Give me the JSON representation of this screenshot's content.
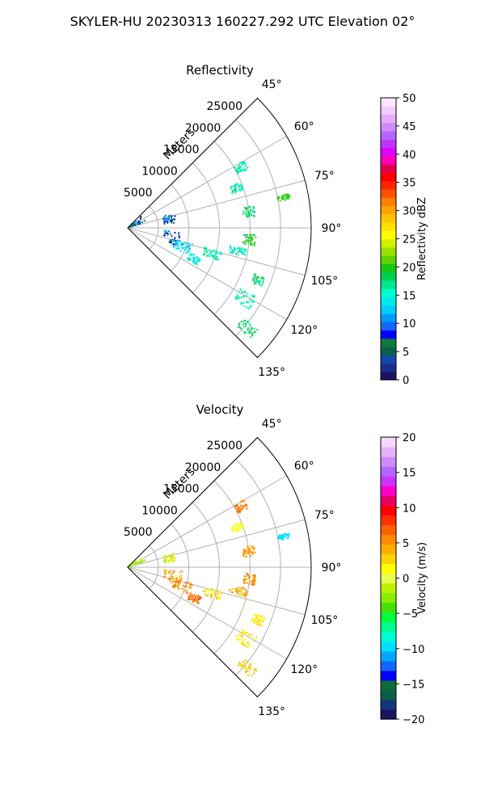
{
  "figure": {
    "suptitle": "SKYLER-HU  20230313  160227.292 UTC Elevation 02°"
  },
  "chart_data": [
    {
      "type": "scatter",
      "projection": "polar-sector",
      "title": "Reflectivity",
      "radial_label": "Meters",
      "r_range": [
        0,
        30000
      ],
      "r_ticks": [
        5000,
        10000,
        15000,
        20000,
        25000
      ],
      "theta_range_deg": [
        45,
        135
      ],
      "theta_ticks": [
        "45°",
        "60°",
        "75°",
        "90°",
        "105°",
        "120°",
        "135°"
      ],
      "theta_tick_values": [
        45,
        60,
        75,
        90,
        105,
        120,
        135
      ],
      "grid": true,
      "colorbar": {
        "label": "Reflectivity dBZ",
        "range": [
          0,
          50
        ],
        "ticks": [
          "0",
          "5",
          "10",
          "15",
          "20",
          "25",
          "30",
          "35",
          "40",
          "45",
          "50"
        ],
        "tick_values": [
          0,
          5,
          10,
          15,
          20,
          25,
          30,
          35,
          40,
          45,
          50
        ]
      },
      "clusters": [
        {
          "az": [
            48,
            72
          ],
          "r": [
            0,
            3000
          ],
          "value": [
            0,
            14
          ]
        },
        {
          "az": [
            72,
            84
          ],
          "r": [
            6000,
            8000
          ],
          "value": [
            2,
            12
          ]
        },
        {
          "az": [
            94,
            110
          ],
          "r": [
            6000,
            9000
          ],
          "value": [
            2,
            12
          ]
        },
        {
          "az": [
            104,
            114
          ],
          "r": [
            8000,
            11000
          ],
          "value": [
            11,
            16
          ]
        },
        {
          "az": [
            112,
            118
          ],
          "r": [
            11000,
            13000
          ],
          "value": [
            12,
            16
          ]
        },
        {
          "az": [
            104,
            110
          ],
          "r": [
            13000,
            16000
          ],
          "value": [
            14,
            18
          ]
        },
        {
          "az": [
            100,
            104
          ],
          "r": [
            17000,
            20000
          ],
          "value": [
            14,
            18
          ]
        },
        {
          "az": [
            93,
            98
          ],
          "r": [
            19000,
            21000
          ],
          "value": [
            18,
            22
          ]
        },
        {
          "az": [
            80,
            85
          ],
          "r": [
            19000,
            21000
          ],
          "value": [
            16,
            20
          ]
        },
        {
          "az": [
            68,
            72
          ],
          "r": [
            18000,
            20000
          ],
          "value": [
            14,
            18
          ]
        },
        {
          "az": [
            60,
            64
          ],
          "r": [
            20000,
            22000
          ],
          "value": [
            14,
            18
          ]
        },
        {
          "az": [
            78,
            80
          ],
          "r": [
            25000,
            27000
          ],
          "value": [
            18,
            22
          ]
        },
        {
          "az": [
            110,
            114
          ],
          "r": [
            22000,
            24000
          ],
          "value": [
            16,
            20
          ]
        },
        {
          "az": [
            118,
            124
          ],
          "r": [
            21000,
            24000
          ],
          "value": [
            14,
            18
          ]
        },
        {
          "az": [
            128,
            132
          ],
          "r": [
            24000,
            27000
          ],
          "value": [
            16,
            20
          ]
        }
      ]
    },
    {
      "type": "scatter",
      "projection": "polar-sector",
      "title": "Velocity",
      "radial_label": "Meters",
      "r_range": [
        0,
        30000
      ],
      "r_ticks": [
        5000,
        10000,
        15000,
        20000,
        25000
      ],
      "theta_range_deg": [
        45,
        135
      ],
      "theta_ticks": [
        "45°",
        "60°",
        "75°",
        "90°",
        "105°",
        "120°",
        "135°"
      ],
      "theta_tick_values": [
        45,
        60,
        75,
        90,
        105,
        120,
        135
      ],
      "grid": true,
      "colorbar": {
        "label": "Velocity (m/s)",
        "range": [
          -20,
          20
        ],
        "ticks": [
          "−20",
          "−15",
          "−10",
          "−5",
          "0",
          "5",
          "10",
          "15",
          "20"
        ],
        "tick_values": [
          -20,
          -15,
          -10,
          -5,
          0,
          5,
          10,
          15,
          20
        ]
      },
      "clusters": [
        {
          "az": [
            48,
            72
          ],
          "r": [
            0,
            3000
          ],
          "value": [
            -4,
            1
          ]
        },
        {
          "az": [
            72,
            84
          ],
          "r": [
            6000,
            8000
          ],
          "value": [
            -3,
            4
          ]
        },
        {
          "az": [
            94,
            110
          ],
          "r": [
            6000,
            9000
          ],
          "value": [
            2,
            7
          ]
        },
        {
          "az": [
            104,
            114
          ],
          "r": [
            8000,
            11000
          ],
          "value": [
            4,
            7
          ]
        },
        {
          "az": [
            112,
            118
          ],
          "r": [
            11000,
            13000
          ],
          "value": [
            5,
            8
          ]
        },
        {
          "az": [
            104,
            110
          ],
          "r": [
            13000,
            16000
          ],
          "value": [
            1,
            4
          ]
        },
        {
          "az": [
            100,
            104
          ],
          "r": [
            17000,
            20000
          ],
          "value": [
            3,
            6
          ]
        },
        {
          "az": [
            93,
            98
          ],
          "r": [
            19000,
            21000
          ],
          "value": [
            4,
            7
          ]
        },
        {
          "az": [
            80,
            85
          ],
          "r": [
            19000,
            21000
          ],
          "value": [
            4,
            6
          ]
        },
        {
          "az": [
            68,
            72
          ],
          "r": [
            18000,
            20000
          ],
          "value": [
            0,
            2
          ]
        },
        {
          "az": [
            60,
            64
          ],
          "r": [
            20000,
            22000
          ],
          "value": [
            5,
            7
          ]
        },
        {
          "az": [
            78,
            80
          ],
          "r": [
            25000,
            27000
          ],
          "value": [
            -10,
            -9
          ]
        },
        {
          "az": [
            110,
            114
          ],
          "r": [
            22000,
            24000
          ],
          "value": [
            1,
            3
          ]
        },
        {
          "az": [
            118,
            124
          ],
          "r": [
            21000,
            24000
          ],
          "value": [
            1,
            3
          ]
        },
        {
          "az": [
            128,
            132
          ],
          "r": [
            24000,
            27000
          ],
          "value": [
            2,
            4
          ]
        }
      ]
    }
  ]
}
